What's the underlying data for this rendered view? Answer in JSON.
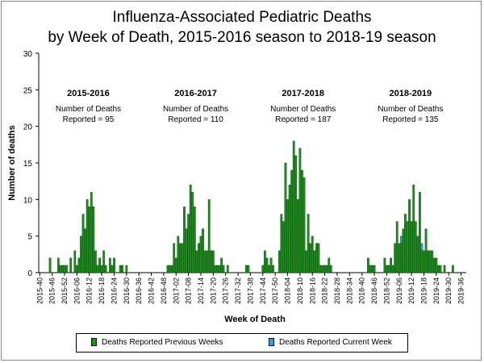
{
  "chart_data": {
    "type": "bar",
    "title_line1": "Influenza-Associated Pediatric Deaths",
    "title_line2": "by Week of Death, 2015-2016 season to 2018-19 season",
    "xlabel": "Week of Death",
    "ylabel": "Number of deaths",
    "ylim": [
      0,
      30
    ],
    "yticks": [
      0,
      5,
      10,
      15,
      20,
      25,
      30
    ],
    "grid": false,
    "x_tick_labels": [
      "2015-40",
      "2015-46",
      "2015-52",
      "2016-06",
      "2016-12",
      "2016-18",
      "2016-24",
      "2016-30",
      "2016-36",
      "2016-42",
      "2016-48",
      "2017-02",
      "2017-08",
      "2017-14",
      "2017-20",
      "2017-26",
      "2017-32",
      "2017-38",
      "2017-44",
      "2017-50",
      "2018-04",
      "2018-10",
      "2018-16",
      "2018-22",
      "2018-28",
      "2018-34",
      "2018-40",
      "2018-46",
      "2018-52",
      "2019-06",
      "2019-12",
      "2019-18",
      "2019-24",
      "2019-30",
      "2019-36"
    ],
    "x_tick_every_weeks": 6,
    "week_count": 207,
    "series": [
      {
        "name": "Deaths Reported Previous Weeks",
        "color": "#1e8c1e",
        "values": [
          0,
          0,
          0,
          0,
          0,
          2,
          0,
          0,
          0,
          2,
          1,
          1,
          1,
          1,
          0,
          2,
          0,
          3,
          1,
          2,
          5,
          8,
          6,
          10,
          9,
          11,
          9,
          3,
          1,
          2,
          1,
          3,
          1,
          0,
          2,
          1,
          2,
          0,
          0,
          1,
          1,
          0,
          1,
          0,
          0,
          0,
          0,
          0,
          0,
          0,
          0,
          0,
          0,
          0,
          0,
          0,
          0,
          0,
          0,
          0,
          0,
          0,
          1,
          1,
          1,
          4,
          2,
          5,
          4,
          4,
          9,
          6,
          8,
          12,
          11,
          9,
          3,
          4,
          5,
          6,
          3,
          3,
          10,
          3,
          3,
          1,
          1,
          1,
          2,
          1,
          0,
          1,
          0,
          0,
          0,
          0,
          0,
          0,
          0,
          0,
          1,
          1,
          0,
          0,
          0,
          0,
          0,
          0,
          1,
          3,
          2,
          1,
          2,
          1,
          0,
          0,
          3,
          8,
          7,
          15,
          10,
          12,
          14,
          18,
          16,
          10,
          17,
          14,
          13,
          3,
          8,
          4,
          5,
          3,
          4,
          4,
          1,
          1,
          1,
          1,
          2,
          1,
          0,
          0,
          0,
          0,
          0,
          0,
          0,
          0,
          0,
          0,
          0,
          0,
          0,
          0,
          0,
          0,
          0,
          2,
          1,
          1,
          1,
          0,
          0,
          0,
          0,
          2,
          1,
          1,
          2,
          1,
          4,
          7,
          4,
          4,
          6,
          8,
          7,
          10,
          7,
          12,
          7,
          5,
          11,
          3,
          3,
          6,
          3,
          3,
          3,
          2,
          2,
          1,
          1,
          0,
          1,
          0,
          0,
          0,
          1,
          0,
          0,
          0,
          0,
          0,
          0,
          0,
          0,
          0,
          0,
          0
        ],
        "note": "values estimated from bar heights; bars span week 2015-40 (index 0) to 2019-36 (index 206)"
      },
      {
        "name": "Deaths Reported Current Week",
        "color": "#3aa0dc",
        "values": [],
        "overlay": [
          {
            "week_index": 175,
            "value": 1
          },
          {
            "week_index": 185,
            "value": 1
          }
        ]
      }
    ],
    "seasons": [
      {
        "label": "2015-2016",
        "caption_line1": "Number of Deaths",
        "caption_line2": "Reported = 95",
        "center_week": 24
      },
      {
        "label": "2016-2017",
        "caption_line1": "Number of Deaths",
        "caption_line2": "Reported = 110",
        "center_week": 76
      },
      {
        "label": "2017-2018",
        "caption_line1": "Number of Deaths",
        "caption_line2": "Reported = 187",
        "center_week": 128
      },
      {
        "label": "2018-2019",
        "caption_line1": "Number of Deaths",
        "caption_line2": "Reported = 135",
        "center_week": 180
      }
    ]
  },
  "legend": {
    "previous_label": "Deaths Reported Previous Weeks",
    "current_label": "Deaths Reported Current Week",
    "previous_color": "#1e8c1e",
    "current_color": "#3aa0dc"
  }
}
